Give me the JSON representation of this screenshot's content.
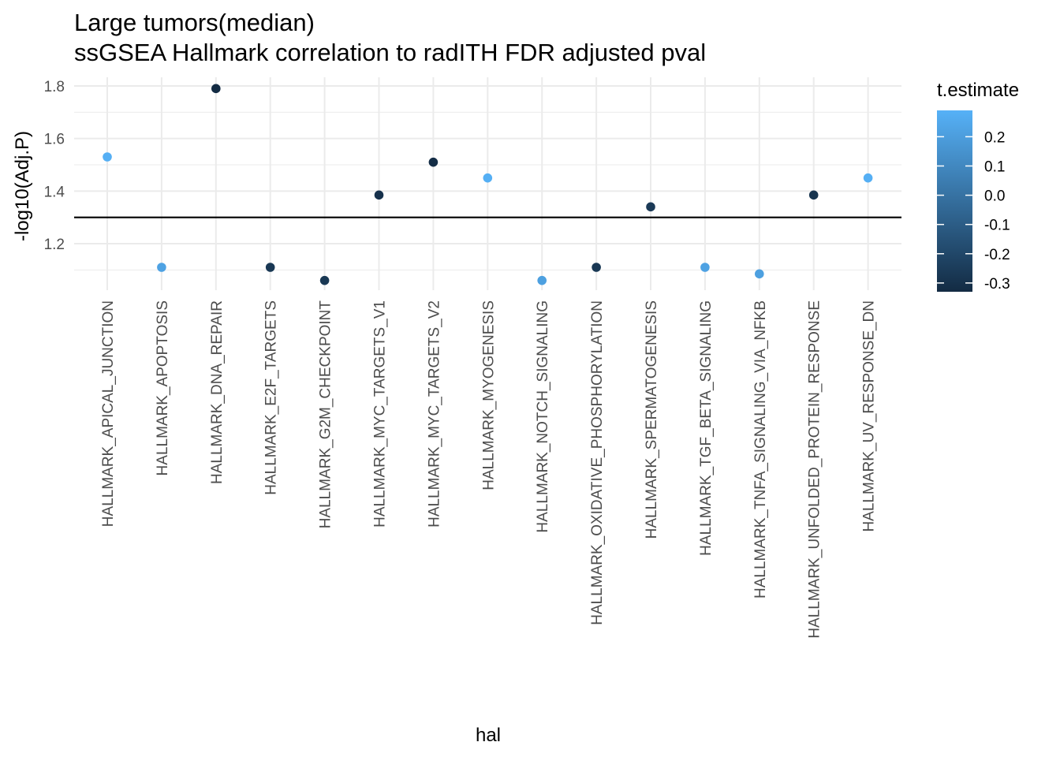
{
  "chart_data": {
    "type": "scatter",
    "title": "Large tumors(median)",
    "subtitle": "ssGSEA Hallmark correlation to radITH FDR adjusted pval",
    "xlabel": "hal",
    "ylabel": "-log10(Adj.P)",
    "ylim": [
      1.08,
      1.82
    ],
    "yticks": [
      1.2,
      1.4,
      1.6,
      1.8
    ],
    "yticklabels": [
      "1.2",
      "1.4",
      "1.6",
      "1.8"
    ],
    "grid": true,
    "reference_line": {
      "y": 1.3,
      "color": "#000000"
    },
    "categories": [
      "HALLMARK_APICAL_JUNCTION",
      "HALLMARK_APOPTOSIS",
      "HALLMARK_DNA_REPAIR",
      "HALLMARK_E2F_TARGETS",
      "HALLMARK_G2M_CHECKPOINT",
      "HALLMARK_MYC_TARGETS_V1",
      "HALLMARK_MYC_TARGETS_V2",
      "HALLMARK_MYOGENESIS",
      "HALLMARK_NOTCH_SIGNALING",
      "HALLMARK_OXIDATIVE_PHOSPHORYLATION",
      "HALLMARK_SPERMATOGENESIS",
      "HALLMARK_TGF_BETA_SIGNALING",
      "HALLMARK_TNFA_SIGNALING_VIA_NFKB",
      "HALLMARK_UNFOLDED_PROTEIN_RESPONSE",
      "HALLMARK_UV_RESPONSE_DN"
    ],
    "values": [
      1.53,
      1.11,
      1.79,
      1.11,
      1.06,
      1.385,
      1.51,
      1.45,
      1.06,
      1.11,
      1.34,
      1.11,
      1.085,
      1.385,
      1.45
    ],
    "color_values": [
      0.28,
      0.22,
      -0.33,
      -0.27,
      -0.27,
      -0.3,
      -0.32,
      0.28,
      0.21,
      -0.27,
      -0.26,
      0.22,
      0.21,
      -0.29,
      0.28
    ],
    "legend": {
      "title": "t.estimate",
      "position": "right",
      "range": [
        -0.33,
        0.29
      ],
      "ticks": [
        0.2,
        0.1,
        0.0,
        -0.1,
        -0.2,
        -0.3
      ],
      "ticklabels": [
        "0.2",
        "0.1",
        "0.0",
        "-0.1",
        "-0.2",
        "-0.3"
      ],
      "color_low": "#132B43",
      "color_high": "#56B1F7"
    }
  }
}
